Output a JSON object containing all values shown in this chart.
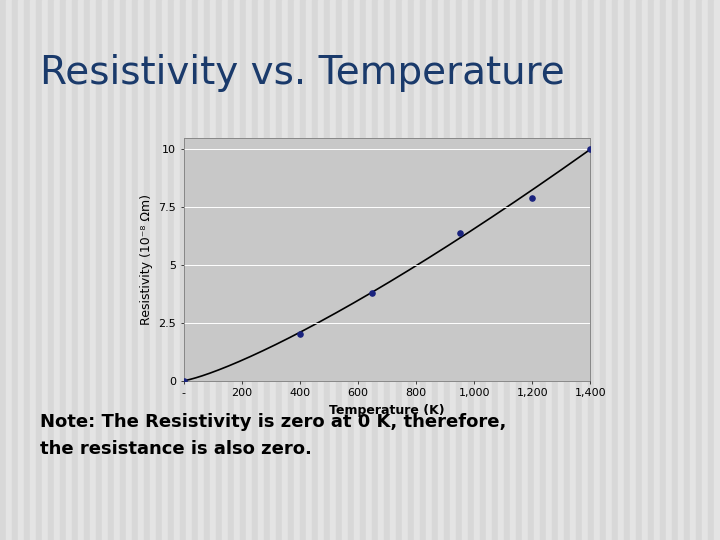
{
  "title": "Resistivity vs. Temperature",
  "note_line1": "Note: The Resistivity is zero at 0 K, therefore,",
  "note_line2": "the resistance is also zero.",
  "xlabel": "Temperature (K)",
  "ylabel": "Resistivity (10⁻⁸ Ωm)",
  "data_points_x": [
    0,
    400,
    650,
    950,
    1200,
    1400
  ],
  "data_points_y": [
    0,
    2.0,
    3.8,
    6.4,
    7.9,
    10.0
  ],
  "xlim": [
    0,
    1400
  ],
  "ylim": [
    0,
    10.5
  ],
  "xticks": [
    0,
    200,
    400,
    600,
    800,
    1000,
    1200,
    1400
  ],
  "xtick_labels": [
    "-",
    "200",
    "400",
    "600",
    "800",
    "1,000",
    "1,200",
    "1,400"
  ],
  "yticks": [
    0,
    2.5,
    5.0,
    7.5,
    10.0
  ],
  "ytick_labels": [
    "0",
    "2.5",
    "5",
    "7.5",
    "10"
  ],
  "curve_power": 1.25,
  "bg_color": "#c8c8c8",
  "slide_bg_light": "#e0e0e0",
  "slide_bg_dark": "#cccccc",
  "chart_border": "#888888",
  "title_color": "#1a3a6b",
  "note_color": "#000000",
  "line_color": "#000000",
  "marker_color": "#1a237e",
  "title_fontsize": 28,
  "note_fontsize": 13,
  "axis_label_fontsize": 9,
  "tick_fontsize": 8
}
